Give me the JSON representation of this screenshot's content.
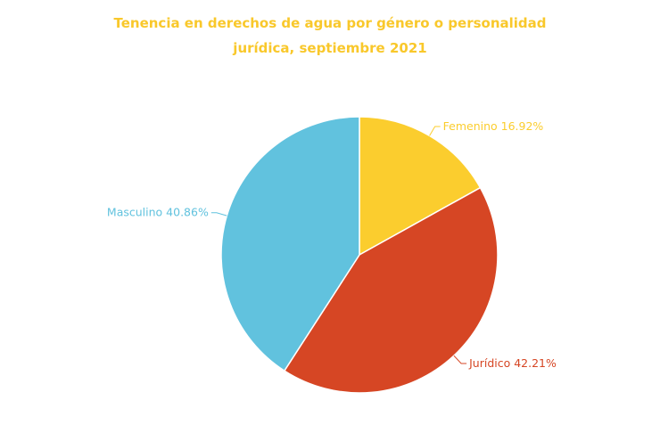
{
  "chart_data": {
    "type": "pie",
    "title_line1": "Tenencia en derechos de agua por género o personalidad",
    "title_line2": "jurídica, septiembre 2021",
    "slices": [
      {
        "label": "Femenino",
        "value": 16.92,
        "display": "Femenino 16.92%",
        "color": "#fbcd2e"
      },
      {
        "label": "Jurídico",
        "value": 42.21,
        "display": "Jurídico 42.21%",
        "color": "#d64624"
      },
      {
        "label": "Masculino",
        "value": 40.86,
        "display": "Masculino 40.86%",
        "color": "#61c2de"
      }
    ]
  }
}
